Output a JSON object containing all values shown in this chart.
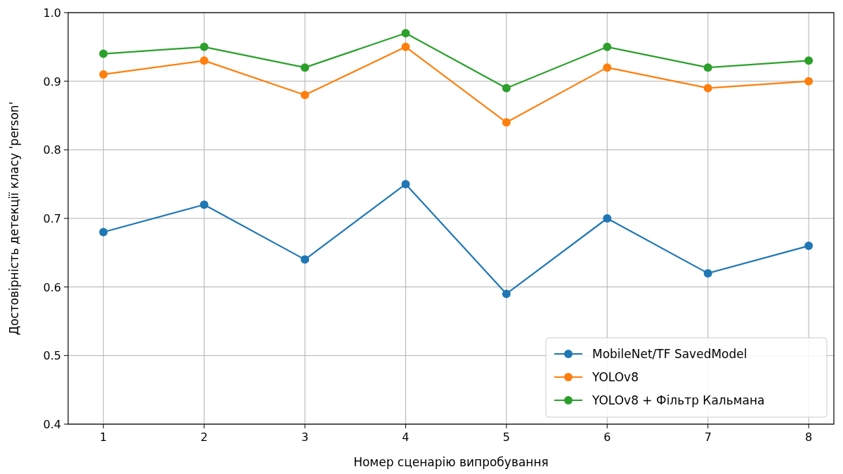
{
  "chart_data": {
    "type": "line",
    "xlabel": "Номер сценарію випробування",
    "ylabel": "Достовірність детекції класу 'person'",
    "x": [
      1,
      2,
      3,
      4,
      5,
      6,
      7,
      8
    ],
    "xlim": [
      0.65,
      8.25
    ],
    "xticks": [
      1,
      2,
      3,
      4,
      5,
      6,
      7,
      8
    ],
    "ylim": [
      0.4,
      1.0
    ],
    "yticks": [
      {
        "value": 0.4,
        "label": "0.4"
      },
      {
        "value": 0.5,
        "label": "0.5"
      },
      {
        "value": 0.6,
        "label": "0.6"
      },
      {
        "value": 0.7,
        "label": "0.7"
      },
      {
        "value": 0.8,
        "label": "0.8"
      },
      {
        "value": 0.9,
        "label": "0.9"
      },
      {
        "value": 1.0,
        "label": "1.0"
      }
    ],
    "grid": true,
    "legend": "bottom right",
    "marker": "circle",
    "line_style": "solid",
    "series": [
      {
        "name": "MobileNet/TF SavedModel",
        "color": "#1f77b4",
        "values": [
          0.68,
          0.72,
          0.64,
          0.75,
          0.59,
          0.7,
          0.62,
          0.66
        ]
      },
      {
        "name": "YOLOv8",
        "color": "#ff7f0e",
        "values": [
          0.91,
          0.93,
          0.88,
          0.95,
          0.84,
          0.92,
          0.89,
          0.9
        ]
      },
      {
        "name": "YOLOv8 + Фільтр Кальмана",
        "color": "#2ca02c",
        "values": [
          0.94,
          0.95,
          0.92,
          0.97,
          0.89,
          0.95,
          0.92,
          0.93
        ]
      }
    ]
  }
}
